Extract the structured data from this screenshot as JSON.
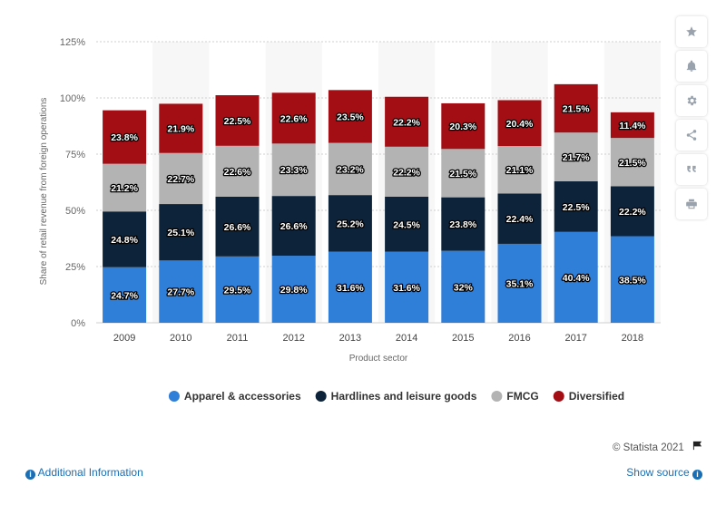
{
  "chart_data": {
    "type": "bar",
    "stacked": true,
    "categories": [
      "2009",
      "2010",
      "2011",
      "2012",
      "2013",
      "2014",
      "2015",
      "2016",
      "2017",
      "2018"
    ],
    "series": [
      {
        "name": "Apparel & accessories",
        "color": "#2f7ed8",
        "values": [
          24.7,
          27.7,
          29.5,
          29.8,
          31.6,
          31.6,
          32,
          35.1,
          40.4,
          38.5
        ],
        "labels": [
          "24.7%",
          "27.7%",
          "29.5%",
          "29.8%",
          "31.6%",
          "31.6%",
          "32%",
          "35.1%",
          "40.4%",
          "38.5%"
        ]
      },
      {
        "name": "Hardlines and leisure goods",
        "color": "#0d233a",
        "values": [
          24.8,
          25.1,
          26.6,
          26.6,
          25.2,
          24.5,
          23.8,
          22.4,
          22.5,
          22.2
        ],
        "labels": [
          "24.8%",
          "25.1%",
          "26.6%",
          "26.6%",
          "25.2%",
          "24.5%",
          "23.8%",
          "22.4%",
          "22.5%",
          "22.2%"
        ]
      },
      {
        "name": "FMCG",
        "color": "#b3b3b3",
        "values": [
          21.2,
          22.7,
          22.6,
          23.3,
          23.2,
          22.2,
          21.5,
          21.1,
          21.7,
          21.5
        ],
        "labels": [
          "21.2%",
          "22.7%",
          "22.6%",
          "23.3%",
          "23.2%",
          "22.2%",
          "21.5%",
          "21.1%",
          "21.7%",
          "21.5%"
        ]
      },
      {
        "name": "Diversified",
        "color": "#a30e15",
        "values": [
          23.8,
          21.9,
          22.5,
          22.6,
          23.5,
          22.2,
          20.3,
          20.4,
          21.5,
          11.4
        ],
        "labels": [
          "23.8%",
          "21.9%",
          "22.5%",
          "22.6%",
          "23.5%",
          "22.2%",
          "20.3%",
          "20.4%",
          "21.5%",
          "11.4%"
        ]
      }
    ],
    "ylim": [
      0,
      125
    ],
    "yticks": [
      0,
      25,
      50,
      75,
      100,
      125
    ],
    "ytick_labels": [
      "0%",
      "25%",
      "50%",
      "75%",
      "100%",
      "125%"
    ],
    "xlabel": "Product sector",
    "ylabel": "Share of retail revenue from foreign operations",
    "grid": true,
    "legend_position": "bottom"
  },
  "side_panel": {
    "icons": [
      "star-icon",
      "bell-icon",
      "gear-icon",
      "share-icon",
      "quote-icon",
      "print-icon"
    ]
  },
  "footer": {
    "credit": "© Statista 2021",
    "additional_info": "Additional Information",
    "show_source": "Show source"
  }
}
